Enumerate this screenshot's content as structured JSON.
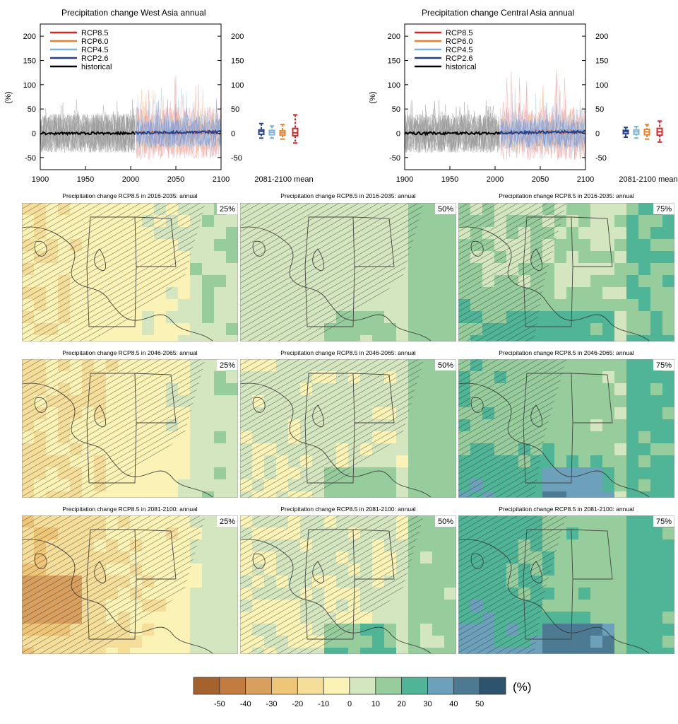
{
  "timeseries_panels": [
    {
      "title": "Precipitation change West Asia annual",
      "ylabel": "(%)",
      "mean_label": "2081-2100 mean"
    },
    {
      "title": "Precipitation change Central Asia annual",
      "ylabel": "(%)",
      "mean_label": "2081-2100 mean"
    }
  ],
  "legend": [
    {
      "label": "RCP8.5",
      "color": "#d62728"
    },
    {
      "label": "RCP6.0",
      "color": "#f07f2a"
    },
    {
      "label": "RCP4.5",
      "color": "#7eb3d9"
    },
    {
      "label": "RCP2.6",
      "color": "#27408b"
    },
    {
      "label": "historical",
      "color": "#000000"
    }
  ],
  "map_rows": [
    {
      "title": "Precipitation change RCP8.5 in 2016-2035: annual"
    },
    {
      "title": "Precipitation change RCP8.5 in 2046-2065: annual"
    },
    {
      "title": "Precipitation change RCP8.5 in 2081-2100: annual"
    }
  ],
  "percentiles": [
    "25%",
    "50%",
    "75%"
  ],
  "colorbar": {
    "unit": "(%)",
    "ticks": [
      "-50",
      "-40",
      "-30",
      "-20",
      "-10",
      "0",
      "10",
      "20",
      "30",
      "40",
      "50"
    ],
    "colors": [
      "#a5622d",
      "#c27c3f",
      "#d89f5e",
      "#efc678",
      "#f5de9a",
      "#fbf3b6",
      "#d3e6bf",
      "#97cc9d",
      "#50b597",
      "#6da1bb",
      "#4d7a93",
      "#2e536e"
    ]
  },
  "chart_data": [
    {
      "type": "line",
      "title": "Precipitation change West Asia annual",
      "ylabel": "(%)",
      "xlim": [
        1900,
        2100
      ],
      "ylim": [
        -75,
        225
      ],
      "xticks": [
        "1900",
        "1950",
        "2000",
        "2050",
        "2100"
      ],
      "yticks": [
        "-50",
        "0",
        "50",
        "100",
        "150",
        "200"
      ],
      "series": [
        {
          "name": "historical",
          "x": [
            1900,
            2005
          ],
          "y": [
            0,
            0
          ]
        },
        {
          "name": "RCP2.6",
          "x": [
            2005,
            2100
          ],
          "y": [
            1,
            3
          ]
        },
        {
          "name": "RCP4.5",
          "x": [
            2005,
            2100
          ],
          "y": [
            1,
            3
          ]
        },
        {
          "name": "RCP6.0",
          "x": [
            2005,
            2100
          ],
          "y": [
            1,
            2
          ]
        },
        {
          "name": "RCP8.5",
          "x": [
            2005,
            2100
          ],
          "y": [
            1,
            2
          ]
        }
      ],
      "boxplots_2081_2100": [
        {
          "name": "RCP2.6",
          "min": -10,
          "q1": -2,
          "median": 4,
          "q3": 7,
          "max": 20
        },
        {
          "name": "RCP4.5",
          "min": -10,
          "q1": -3,
          "median": 2,
          "q3": 6,
          "max": 15
        },
        {
          "name": "RCP6.0",
          "min": -12,
          "q1": -4,
          "median": 1,
          "q3": 5,
          "max": 18
        },
        {
          "name": "RCP8.5",
          "min": -20,
          "q1": -5,
          "median": 1,
          "q3": 10,
          "max": 38
        }
      ]
    },
    {
      "type": "line",
      "title": "Precipitation change Central Asia annual",
      "ylabel": "(%)",
      "xlim": [
        1900,
        2100
      ],
      "ylim": [
        -75,
        225
      ],
      "xticks": [
        "1900",
        "1950",
        "2000",
        "2050",
        "2100"
      ],
      "yticks": [
        "-50",
        "0",
        "50",
        "100",
        "150",
        "200"
      ],
      "series": [
        {
          "name": "historical",
          "x": [
            1900,
            2005
          ],
          "y": [
            0,
            0
          ]
        },
        {
          "name": "RCP2.6",
          "x": [
            2005,
            2100
          ],
          "y": [
            1,
            3
          ]
        },
        {
          "name": "RCP4.5",
          "x": [
            2005,
            2100
          ],
          "y": [
            1,
            4
          ]
        },
        {
          "name": "RCP6.0",
          "x": [
            2005,
            2100
          ],
          "y": [
            1,
            3
          ]
        },
        {
          "name": "RCP8.5",
          "x": [
            2005,
            2100
          ],
          "y": [
            1,
            4
          ]
        }
      ],
      "boxplots_2081_2100": [
        {
          "name": "RCP2.6",
          "min": -8,
          "q1": -1,
          "median": 3,
          "q3": 6,
          "max": 12
        },
        {
          "name": "RCP4.5",
          "min": -10,
          "q1": -2,
          "median": 3,
          "q3": 7,
          "max": 14
        },
        {
          "name": "RCP6.0",
          "min": -12,
          "q1": -3,
          "median": 3,
          "q3": 8,
          "max": 18
        },
        {
          "name": "RCP8.5",
          "min": -18,
          "q1": -4,
          "median": 3,
          "q3": 10,
          "max": 25
        }
      ]
    }
  ]
}
